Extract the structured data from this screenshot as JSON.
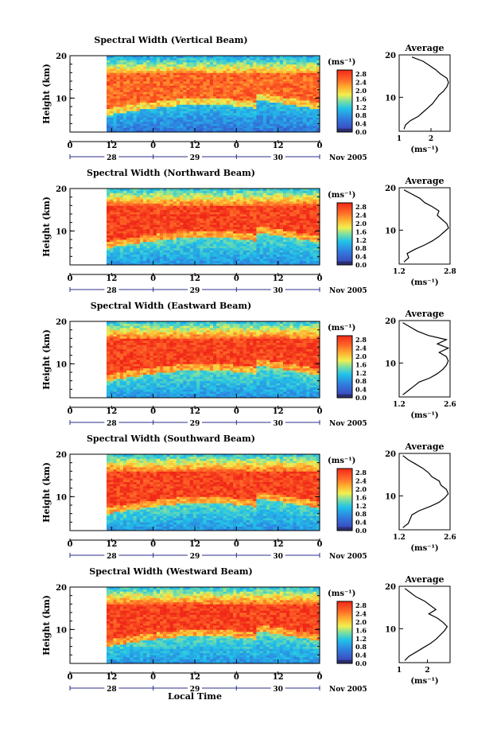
{
  "figure": {
    "colorbar_unit": "(ms⁻¹)",
    "average_title": "Average",
    "ylabel": "Height (km)",
    "date_suffix": "Nov 2005",
    "xlabel": "Local Time"
  },
  "chart_data": [
    {
      "type": "heatmap",
      "title": "Spectral Width (Vertical Beam)",
      "ylabel": "Height (km)",
      "ylim": [
        2,
        20
      ],
      "yticks": [
        10,
        20
      ],
      "xlabel": "Local Time",
      "time_ticks": [
        "0",
        "12",
        "0",
        "12",
        "0",
        "12",
        "0"
      ],
      "date_ticks": [
        "28",
        "29",
        "30"
      ],
      "colorbar": {
        "unit": "(ms⁻¹)",
        "ticks": [
          "2.8",
          "2.4",
          "2.0",
          "1.6",
          "1.2",
          "0.8",
          "0.4",
          "0.0"
        ],
        "range": [
          0,
          3.0
        ]
      },
      "average_profile": {
        "xlabel": "(ms⁻¹)",
        "xticks": [
          "1",
          "2"
        ],
        "xlim": [
          1,
          2.6
        ],
        "ylim": [
          2,
          20
        ],
        "points": [
          [
            1.15,
            2.5
          ],
          [
            1.2,
            3.5
          ],
          [
            1.35,
            4.5
          ],
          [
            1.6,
            5.5
          ],
          [
            1.75,
            6.5
          ],
          [
            1.9,
            7.5
          ],
          [
            2.05,
            8.5
          ],
          [
            2.15,
            9.5
          ],
          [
            2.25,
            10.5
          ],
          [
            2.4,
            11.5
          ],
          [
            2.5,
            12.5
          ],
          [
            2.55,
            13.5
          ],
          [
            2.5,
            14.5
          ],
          [
            2.3,
            15.5
          ],
          [
            2.15,
            16.5
          ],
          [
            1.95,
            17.5
          ],
          [
            1.75,
            18.5
          ],
          [
            1.4,
            19.5
          ]
        ]
      }
    },
    {
      "type": "heatmap",
      "title": "Spectral Width (Northward Beam)",
      "ylabel": "Height (km)",
      "ylim": [
        2,
        20
      ],
      "yticks": [
        10,
        20
      ],
      "xlabel": "Local Time",
      "time_ticks": [
        "0",
        "12",
        "0",
        "12",
        "0",
        "12",
        "0"
      ],
      "date_ticks": [
        "28",
        "29",
        "30"
      ],
      "colorbar": {
        "unit": "(ms⁻¹)",
        "ticks": [
          "2.8",
          "2.4",
          "2.0",
          "1.6",
          "1.2",
          "0.8",
          "0.4",
          "0.0"
        ],
        "range": [
          0,
          3.0
        ]
      },
      "average_profile": {
        "xlabel": "(ms⁻¹)",
        "xticks": [
          "1.2",
          "2.8"
        ],
        "xlim": [
          1.2,
          2.8
        ],
        "ylim": [
          2,
          20
        ],
        "points": [
          [
            1.35,
            2.5
          ],
          [
            1.5,
            3.5
          ],
          [
            1.45,
            4.5
          ],
          [
            1.7,
            5.5
          ],
          [
            2.0,
            6.5
          ],
          [
            2.25,
            7.5
          ],
          [
            2.45,
            8.5
          ],
          [
            2.6,
            9.5
          ],
          [
            2.75,
            10.5
          ],
          [
            2.7,
            11.5
          ],
          [
            2.55,
            12.5
          ],
          [
            2.4,
            13.5
          ],
          [
            2.45,
            14.5
          ],
          [
            2.25,
            15.5
          ],
          [
            2.0,
            16.5
          ],
          [
            1.85,
            17.5
          ],
          [
            1.6,
            18.5
          ],
          [
            1.35,
            19.5
          ]
        ]
      }
    },
    {
      "type": "heatmap",
      "title": "Spectral Width (Eastward Beam)",
      "ylabel": "Height (km)",
      "ylim": [
        2,
        20
      ],
      "yticks": [
        10,
        20
      ],
      "xlabel": "Local Time",
      "time_ticks": [
        "0",
        "12",
        "0",
        "12",
        "0",
        "12",
        "0"
      ],
      "date_ticks": [
        "28",
        "29",
        "30"
      ],
      "colorbar": {
        "unit": "(ms⁻¹)",
        "ticks": [
          "2.8",
          "2.4",
          "2.0",
          "1.6",
          "1.2",
          "0.8",
          "0.4",
          "0.0"
        ],
        "range": [
          0,
          3.0
        ]
      },
      "average_profile": {
        "xlabel": "(ms⁻¹)",
        "xticks": [
          "1.2",
          "2.6"
        ],
        "xlim": [
          1.2,
          2.6
        ],
        "ylim": [
          2,
          20
        ],
        "points": [
          [
            1.3,
            2.5
          ],
          [
            1.45,
            3.5
          ],
          [
            1.6,
            4.5
          ],
          [
            1.75,
            5.5
          ],
          [
            2.05,
            6.5
          ],
          [
            2.25,
            7.5
          ],
          [
            2.4,
            8.5
          ],
          [
            2.5,
            9.5
          ],
          [
            2.55,
            10.5
          ],
          [
            2.5,
            11.5
          ],
          [
            2.3,
            12.5
          ],
          [
            2.55,
            13.5
          ],
          [
            2.25,
            14.5
          ],
          [
            2.5,
            15.5
          ],
          [
            2.0,
            16.5
          ],
          [
            1.7,
            17.5
          ],
          [
            1.5,
            18.5
          ],
          [
            1.3,
            19.5
          ]
        ]
      }
    },
    {
      "type": "heatmap",
      "title": "Spectral Width (Southward Beam)",
      "ylabel": "Height (km)",
      "ylim": [
        2,
        20
      ],
      "yticks": [
        10,
        20
      ],
      "xlabel": "Local Time",
      "time_ticks": [
        "0",
        "12",
        "0",
        "12",
        "0",
        "12",
        "0"
      ],
      "date_ticks": [
        "28",
        "29",
        "30"
      ],
      "colorbar": {
        "unit": "(ms⁻¹)",
        "ticks": [
          "2.8",
          "2.4",
          "2.0",
          "1.6",
          "1.2",
          "0.8",
          "0.4",
          "0.0"
        ],
        "range": [
          0,
          3.0
        ]
      },
      "average_profile": {
        "xlabel": "(ms⁻¹)",
        "xticks": [
          "1.2",
          "2.6"
        ],
        "xlim": [
          1.2,
          2.6
        ],
        "ylim": [
          2,
          20
        ],
        "points": [
          [
            1.3,
            2.5
          ],
          [
            1.45,
            3.5
          ],
          [
            1.5,
            4.5
          ],
          [
            1.55,
            5.5
          ],
          [
            1.75,
            6.5
          ],
          [
            2.05,
            7.5
          ],
          [
            2.3,
            8.5
          ],
          [
            2.45,
            9.5
          ],
          [
            2.55,
            10.5
          ],
          [
            2.5,
            11.5
          ],
          [
            2.35,
            12.5
          ],
          [
            2.3,
            13.5
          ],
          [
            2.1,
            14.5
          ],
          [
            2.0,
            15.5
          ],
          [
            1.85,
            16.5
          ],
          [
            1.65,
            17.5
          ],
          [
            1.45,
            18.5
          ],
          [
            1.3,
            19.5
          ]
        ]
      }
    },
    {
      "type": "heatmap",
      "title": "Spectral Width (Westward Beam)",
      "ylabel": "Height (km)",
      "ylim": [
        2,
        20
      ],
      "yticks": [
        10,
        20
      ],
      "xlabel": "Local Time",
      "time_ticks": [
        "0",
        "12",
        "0",
        "12",
        "0",
        "12",
        "0"
      ],
      "date_ticks": [
        "28",
        "29",
        "30"
      ],
      "colorbar": {
        "unit": "(ms⁻¹)",
        "ticks": [
          "2.8",
          "2.4",
          "2.0",
          "1.6",
          "1.2",
          "0.8",
          "0.4",
          "0.0"
        ],
        "range": [
          0,
          3.0
        ]
      },
      "average_profile": {
        "xlabel": "(ms⁻¹)",
        "xticks": [
          "1",
          "2"
        ],
        "xlim": [
          1,
          2.8
        ],
        "ylim": [
          2,
          20
        ],
        "points": [
          [
            1.2,
            2.5
          ],
          [
            1.35,
            3.5
          ],
          [
            1.6,
            4.5
          ],
          [
            1.85,
            5.5
          ],
          [
            2.1,
            6.5
          ],
          [
            2.3,
            7.5
          ],
          [
            2.45,
            8.5
          ],
          [
            2.6,
            9.5
          ],
          [
            2.7,
            10.5
          ],
          [
            2.55,
            11.5
          ],
          [
            2.35,
            12.5
          ],
          [
            2.05,
            13.5
          ],
          [
            2.3,
            14.5
          ],
          [
            2.1,
            15.5
          ],
          [
            1.9,
            16.5
          ],
          [
            1.6,
            17.5
          ],
          [
            1.4,
            18.5
          ],
          [
            1.2,
            19.5
          ]
        ]
      }
    }
  ]
}
